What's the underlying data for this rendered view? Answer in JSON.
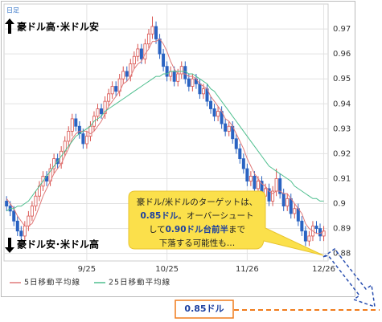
{
  "chart_data": {
    "type": "candlestick",
    "period_label": "日足",
    "upper_label": "豪ドル高･米ドル安",
    "lower_label": "豪ドル安･米ドル高",
    "callout": [
      [
        {
          "text": "豪ドル/米ドルのターゲットは、",
          "emphasis": false
        }
      ],
      [
        {
          "text": "0.85ドル",
          "emphasis": true
        },
        {
          "text": "。オーバーシュート",
          "emphasis": false
        }
      ],
      [
        {
          "text": "して",
          "emphasis": false
        },
        {
          "text": "0.90ドル台前半",
          "emphasis": true
        },
        {
          "text": "まで",
          "emphasis": false
        }
      ],
      [
        {
          "text": "下落する可能性も…",
          "emphasis": false
        }
      ]
    ],
    "target_label": "0.85ドル",
    "up_color": "#d9534f",
    "down_color": "#2a63c2",
    "xlim": [
      -0.7,
      88.2
    ],
    "xticks": [
      {
        "value": 22,
        "label": "9/25"
      },
      {
        "value": 44,
        "label": "10/25"
      },
      {
        "value": 66,
        "label": "11/26"
      },
      {
        "value": 87,
        "label": "12/26"
      }
    ],
    "ylim": [
      0.877,
      0.98
    ],
    "yticks": [
      0.97,
      0.96,
      0.95,
      0.94,
      0.93,
      0.92,
      0.91,
      0.9,
      0.89,
      0.88
    ],
    "grid": true,
    "ohlc": {
      "open": [
        0.901,
        0.899,
        0.897,
        0.893,
        0.889,
        0.887,
        0.891,
        0.895,
        0.899,
        0.903,
        0.907,
        0.911,
        0.909,
        0.914,
        0.918,
        0.916,
        0.921,
        0.925,
        0.929,
        0.934,
        0.931,
        0.928,
        0.924,
        0.927,
        0.931,
        0.935,
        0.938,
        0.936,
        0.941,
        0.944,
        0.947,
        0.945,
        0.95,
        0.953,
        0.951,
        0.956,
        0.959,
        0.962,
        0.958,
        0.964,
        0.968,
        0.971,
        0.966,
        0.96,
        0.955,
        0.951,
        0.953,
        0.949,
        0.952,
        0.955,
        0.95,
        0.947,
        0.95,
        0.948,
        0.944,
        0.946,
        0.941,
        0.938,
        0.935,
        0.937,
        0.932,
        0.929,
        0.931,
        0.926,
        0.922,
        0.918,
        0.914,
        0.909,
        0.911,
        0.906,
        0.909,
        0.903,
        0.906,
        0.901,
        0.905,
        0.91,
        0.904,
        0.899,
        0.902,
        0.896,
        0.898,
        0.893,
        0.889,
        0.885,
        0.887,
        0.891,
        0.89,
        0.887
      ],
      "high": [
        0.903,
        0.901,
        0.899,
        0.895,
        0.891,
        0.893,
        0.897,
        0.901,
        0.905,
        0.909,
        0.913,
        0.913,
        0.916,
        0.92,
        0.92,
        0.923,
        0.927,
        0.931,
        0.936,
        0.936,
        0.933,
        0.93,
        0.929,
        0.933,
        0.937,
        0.94,
        0.94,
        0.943,
        0.946,
        0.949,
        0.949,
        0.952,
        0.955,
        0.955,
        0.958,
        0.961,
        0.964,
        0.964,
        0.966,
        0.97,
        0.975,
        0.973,
        0.968,
        0.962,
        0.957,
        0.955,
        0.955,
        0.954,
        0.957,
        0.957,
        0.952,
        0.952,
        0.952,
        0.95,
        0.948,
        0.948,
        0.943,
        0.94,
        0.939,
        0.939,
        0.934,
        0.933,
        0.933,
        0.928,
        0.924,
        0.92,
        0.916,
        0.913,
        0.913,
        0.911,
        0.911,
        0.908,
        0.908,
        0.907,
        0.914,
        0.912,
        0.906,
        0.904,
        0.904,
        0.9,
        0.9,
        0.895,
        0.891,
        0.889,
        0.893,
        0.893,
        0.892,
        0.891
      ],
      "low": [
        0.897,
        0.895,
        0.891,
        0.887,
        0.885,
        0.885,
        0.889,
        0.893,
        0.897,
        0.901,
        0.905,
        0.907,
        0.907,
        0.912,
        0.914,
        0.914,
        0.919,
        0.923,
        0.927,
        0.929,
        0.926,
        0.922,
        0.922,
        0.925,
        0.929,
        0.933,
        0.934,
        0.934,
        0.939,
        0.942,
        0.943,
        0.943,
        0.948,
        0.949,
        0.949,
        0.954,
        0.957,
        0.956,
        0.956,
        0.962,
        0.966,
        0.964,
        0.958,
        0.953,
        0.949,
        0.949,
        0.947,
        0.947,
        0.95,
        0.948,
        0.945,
        0.945,
        0.946,
        0.942,
        0.942,
        0.939,
        0.936,
        0.933,
        0.933,
        0.93,
        0.927,
        0.927,
        0.924,
        0.92,
        0.916,
        0.912,
        0.907,
        0.907,
        0.904,
        0.904,
        0.901,
        0.901,
        0.899,
        0.899,
        0.903,
        0.902,
        0.897,
        0.897,
        0.894,
        0.894,
        0.891,
        0.887,
        0.883,
        0.883,
        0.885,
        0.888,
        0.885,
        0.885
      ],
      "close": [
        0.899,
        0.897,
        0.893,
        0.889,
        0.887,
        0.891,
        0.895,
        0.899,
        0.903,
        0.907,
        0.911,
        0.909,
        0.914,
        0.918,
        0.916,
        0.921,
        0.925,
        0.929,
        0.934,
        0.931,
        0.928,
        0.924,
        0.927,
        0.931,
        0.935,
        0.938,
        0.936,
        0.941,
        0.944,
        0.947,
        0.945,
        0.95,
        0.953,
        0.951,
        0.956,
        0.959,
        0.962,
        0.958,
        0.964,
        0.968,
        0.971,
        0.966,
        0.96,
        0.955,
        0.951,
        0.953,
        0.949,
        0.952,
        0.955,
        0.95,
        0.947,
        0.95,
        0.948,
        0.944,
        0.946,
        0.941,
        0.938,
        0.935,
        0.937,
        0.932,
        0.929,
        0.931,
        0.926,
        0.922,
        0.918,
        0.914,
        0.909,
        0.911,
        0.906,
        0.909,
        0.903,
        0.906,
        0.901,
        0.905,
        0.91,
        0.904,
        0.899,
        0.902,
        0.896,
        0.898,
        0.893,
        0.889,
        0.885,
        0.887,
        0.891,
        0.89,
        0.887,
        0.889
      ]
    },
    "series": [
      {
        "name": "5日移動平均線",
        "color": "#e07a7a",
        "values": [
          0.902,
          0.9,
          0.898,
          0.895,
          0.893,
          0.891,
          0.891,
          0.892,
          0.895,
          0.899,
          0.903,
          0.906,
          0.909,
          0.912,
          0.914,
          0.916,
          0.919,
          0.922,
          0.926,
          0.928,
          0.929,
          0.929,
          0.929,
          0.928,
          0.929,
          0.931,
          0.933,
          0.936,
          0.939,
          0.941,
          0.943,
          0.945,
          0.948,
          0.949,
          0.951,
          0.954,
          0.956,
          0.957,
          0.96,
          0.962,
          0.965,
          0.965,
          0.966,
          0.964,
          0.961,
          0.957,
          0.954,
          0.952,
          0.952,
          0.952,
          0.951,
          0.951,
          0.95,
          0.948,
          0.947,
          0.946,
          0.943,
          0.941,
          0.939,
          0.937,
          0.934,
          0.933,
          0.931,
          0.928,
          0.925,
          0.922,
          0.918,
          0.915,
          0.912,
          0.91,
          0.908,
          0.907,
          0.905,
          0.904,
          0.905,
          0.905,
          0.904,
          0.904,
          0.902,
          0.9,
          0.898,
          0.896,
          0.892,
          0.89,
          0.889,
          0.888,
          0.888,
          0.889
        ]
      },
      {
        "name": "25日移動平均線",
        "color": "#4fbf8f",
        "values": [
          0.897,
          0.898,
          0.898,
          0.899,
          0.899,
          0.9,
          0.901,
          0.903,
          0.905,
          0.907,
          0.909,
          0.911,
          0.913,
          0.915,
          0.917,
          0.919,
          0.921,
          0.923,
          0.925,
          0.927,
          0.928,
          0.929,
          0.93,
          0.931,
          0.933,
          0.934,
          0.935,
          0.937,
          0.938,
          0.939,
          0.94,
          0.941,
          0.942,
          0.943,
          0.944,
          0.945,
          0.946,
          0.947,
          0.948,
          0.949,
          0.95,
          0.951,
          0.951,
          0.952,
          0.952,
          0.953,
          0.953,
          0.953,
          0.953,
          0.953,
          0.952,
          0.952,
          0.951,
          0.95,
          0.949,
          0.948,
          0.946,
          0.945,
          0.943,
          0.941,
          0.939,
          0.937,
          0.935,
          0.933,
          0.931,
          0.929,
          0.927,
          0.925,
          0.923,
          0.921,
          0.919,
          0.917,
          0.915,
          0.914,
          0.913,
          0.912,
          0.911,
          0.91,
          0.909,
          0.907,
          0.906,
          0.905,
          0.904,
          0.903,
          0.902,
          0.902,
          0.901,
          0.901
        ]
      }
    ]
  }
}
